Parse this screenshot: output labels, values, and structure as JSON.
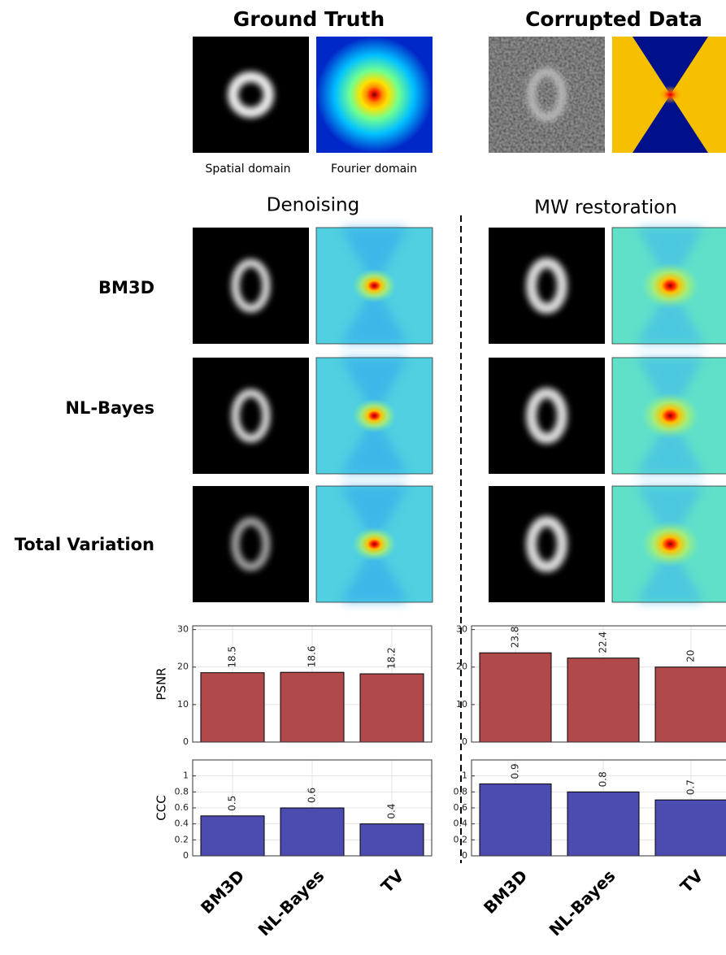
{
  "figure": {
    "title_left": "Ground Truth",
    "title_right": "Corrupted Data",
    "caption_spatial": "Spatial domain",
    "caption_fourier": "Fourier domain",
    "section_left": "Denoising",
    "section_right": "MW restoration",
    "rows": [
      "BM3D",
      "NL-Bayes",
      "Total Variation"
    ]
  },
  "chart_data": [
    {
      "type": "bar",
      "ylabel": "PSNR",
      "values": [
        18.5,
        18.6,
        18.2
      ],
      "color": "#b0494a",
      "ylim": [
        0,
        31
      ],
      "yticks": [
        0,
        10,
        20,
        30
      ],
      "grid": true
    },
    {
      "type": "bar",
      "values": [
        23.8,
        22.4,
        20
      ],
      "color": "#b0494a",
      "ylim": [
        0,
        31
      ],
      "yticks": [
        0,
        10,
        20,
        30
      ],
      "grid": true
    },
    {
      "type": "bar",
      "ylabel": "CCC",
      "categories": [
        "BM3D",
        "NL-Bayes",
        "TV"
      ],
      "values": [
        0.5,
        0.6,
        0.4
      ],
      "color": "#4b4bb0",
      "ylim": [
        0,
        1.2
      ],
      "yticks": [
        0,
        0.2,
        0.4,
        0.6,
        0.8,
        1
      ],
      "grid": true
    },
    {
      "type": "bar",
      "categories": [
        "BM3D",
        "NL-Bayes",
        "TV"
      ],
      "values": [
        0.9,
        0.8,
        0.7
      ],
      "color": "#4b4bb0",
      "ylim": [
        0,
        1.2
      ],
      "yticks": [
        0,
        0.2,
        0.4,
        0.6,
        0.8,
        1
      ],
      "grid": true
    }
  ]
}
